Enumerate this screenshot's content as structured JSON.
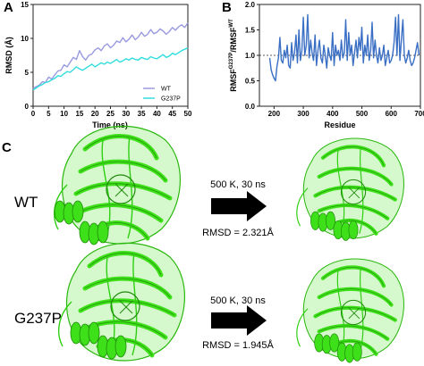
{
  "panels": {
    "a": {
      "letter": "A"
    },
    "b": {
      "letter": "B"
    },
    "c": {
      "letter": "C"
    }
  },
  "chart_data": [
    {
      "type": "line",
      "xlabel": "Time (ns)",
      "ylabel": "RMSD (Å)",
      "xlim": [
        0,
        50
      ],
      "ylim": [
        0,
        15
      ],
      "xticks": [
        "0",
        "5",
        "10",
        "15",
        "20",
        "25",
        "30",
        "35",
        "40",
        "45",
        "50"
      ],
      "yticks": [
        "0",
        "5",
        "10",
        "15"
      ],
      "legend_position": "bottom-right",
      "series": [
        {
          "name": "WT",
          "color": "#9a9ae0",
          "x": [
            0,
            1,
            2,
            3,
            4,
            5,
            6,
            7,
            8,
            9,
            10,
            11,
            12,
            13,
            14,
            15,
            16,
            17,
            18,
            19,
            20,
            21,
            22,
            23,
            24,
            25,
            26,
            27,
            28,
            29,
            30,
            31,
            32,
            33,
            34,
            35,
            36,
            37,
            38,
            39,
            40,
            41,
            42,
            43,
            44,
            45,
            46,
            47,
            48,
            49,
            50
          ],
          "y": [
            2.6,
            2.9,
            3.1,
            3.6,
            3.5,
            4.3,
            4.0,
            4.6,
            5.2,
            5.3,
            6.1,
            5.8,
            6.5,
            7.2,
            6.9,
            8.2,
            7.3,
            6.8,
            7.5,
            7.7,
            8.3,
            8.6,
            8.2,
            8.9,
            9.2,
            8.6,
            9.0,
            9.6,
            9.4,
            10.1,
            9.5,
            9.9,
            10.5,
            9.8,
            10.2,
            10.9,
            10.3,
            10.6,
            11.3,
            10.7,
            10.9,
            11.4,
            11.1,
            10.6,
            11.0,
            11.6,
            11.2,
            11.7,
            12.0,
            11.6,
            12.3
          ]
        },
        {
          "name": "G237P",
          "color": "#33dddd",
          "x": [
            0,
            1,
            2,
            3,
            4,
            5,
            6,
            7,
            8,
            9,
            10,
            11,
            12,
            13,
            14,
            15,
            16,
            17,
            18,
            19,
            20,
            21,
            22,
            23,
            24,
            25,
            26,
            27,
            28,
            29,
            30,
            31,
            32,
            33,
            34,
            35,
            36,
            37,
            38,
            39,
            40,
            41,
            42,
            43,
            44,
            45,
            46,
            47,
            48,
            49,
            50
          ],
          "y": [
            2.4,
            2.7,
            3.0,
            3.2,
            3.5,
            3.6,
            3.9,
            4.1,
            4.5,
            4.4,
            4.8,
            5.1,
            5.0,
            5.4,
            5.8,
            5.5,
            5.3,
            5.6,
            5.9,
            6.2,
            5.8,
            6.1,
            6.4,
            6.2,
            6.5,
            6.3,
            6.6,
            6.9,
            6.5,
            6.7,
            7.0,
            6.8,
            7.1,
            6.9,
            6.8,
            7.2,
            7.0,
            6.9,
            7.3,
            7.1,
            7.0,
            7.3,
            7.6,
            7.2,
            7.4,
            7.8,
            7.6,
            7.9,
            8.2,
            8.4,
            8.6
          ]
        }
      ]
    },
    {
      "type": "line",
      "xlabel": "Residue",
      "ylabel": "RMSF",
      "ylabel_sup": "G237P",
      "ylabel_mid": "/RMSF",
      "ylabel_sup2": "WT",
      "xlim": [
        150,
        700
      ],
      "ylim": [
        0.0,
        2.0
      ],
      "xticks": [
        "200",
        "300",
        "400",
        "500",
        "600",
        "700"
      ],
      "yticks": [
        "0.0",
        "0.5",
        "1.0",
        "1.5",
        "2.0"
      ],
      "reference_line": 1.0,
      "series": [
        {
          "color": "#3a6fc4",
          "x": [
            185,
            190,
            195,
            200,
            205,
            210,
            215,
            220,
            225,
            230,
            235,
            240,
            245,
            250,
            255,
            260,
            265,
            270,
            275,
            280,
            285,
            290,
            295,
            300,
            305,
            310,
            315,
            320,
            325,
            330,
            335,
            340,
            345,
            350,
            355,
            360,
            365,
            370,
            375,
            380,
            385,
            390,
            395,
            400,
            405,
            410,
            415,
            420,
            425,
            430,
            435,
            440,
            445,
            450,
            455,
            460,
            465,
            470,
            475,
            480,
            485,
            490,
            495,
            500,
            505,
            510,
            515,
            520,
            525,
            530,
            535,
            540,
            545,
            550,
            555,
            560,
            565,
            570,
            575,
            580,
            585,
            590,
            595,
            600,
            605,
            610,
            615,
            620,
            625,
            630,
            635,
            640,
            645,
            650,
            655,
            660,
            665,
            670,
            675,
            680,
            685,
            690,
            695
          ],
          "y": [
            0.95,
            0.72,
            0.62,
            0.55,
            0.5,
            0.78,
            0.95,
            1.35,
            0.9,
            0.85,
            1.1,
            0.95,
            1.2,
            0.8,
            0.75,
            1.25,
            0.9,
            1.05,
            1.4,
            0.85,
            1.5,
            0.9,
            1.1,
            1.75,
            1.0,
            1.2,
            1.8,
            0.95,
            1.3,
            1.05,
            0.9,
            1.4,
            0.8,
            1.1,
            1.3,
            0.95,
            0.85,
            1.2,
            1.0,
            0.75,
            1.15,
            1.0,
            0.9,
            1.45,
            0.8,
            1.2,
            1.0,
            1.1,
            0.9,
            1.3,
            0.95,
            1.05,
            1.7,
            0.9,
            1.45,
            1.0,
            1.2,
            0.8,
            1.05,
            1.3,
            0.95,
            1.35,
            1.1,
            1.55,
            0.85,
            1.2,
            1.0,
            1.4,
            0.9,
            1.1,
            1.65,
            0.95,
            1.3,
            1.0,
            0.85,
            1.15,
            0.9,
            1.0,
            1.2,
            0.8,
            0.95,
            1.1,
            0.85,
            0.9,
            1.0,
            1.25,
            1.75,
            1.0,
            1.8,
            0.9,
            1.3,
            1.7,
            1.0,
            0.85,
            0.95,
            1.1,
            0.9,
            0.8,
            0.85,
            0.95,
            1.1,
            1.25,
            1.0
          ]
        }
      ]
    }
  ],
  "panel_c": {
    "rows": [
      {
        "label": "WT",
        "condition": "500 K, 30 ns",
        "rmsd": "RMSD = 2.321Å"
      },
      {
        "label": "G237P",
        "condition": "500 K, 30 ns",
        "rmsd": "RMSD = 1.945Å"
      }
    ],
    "protein_color": "#3ee01a"
  }
}
